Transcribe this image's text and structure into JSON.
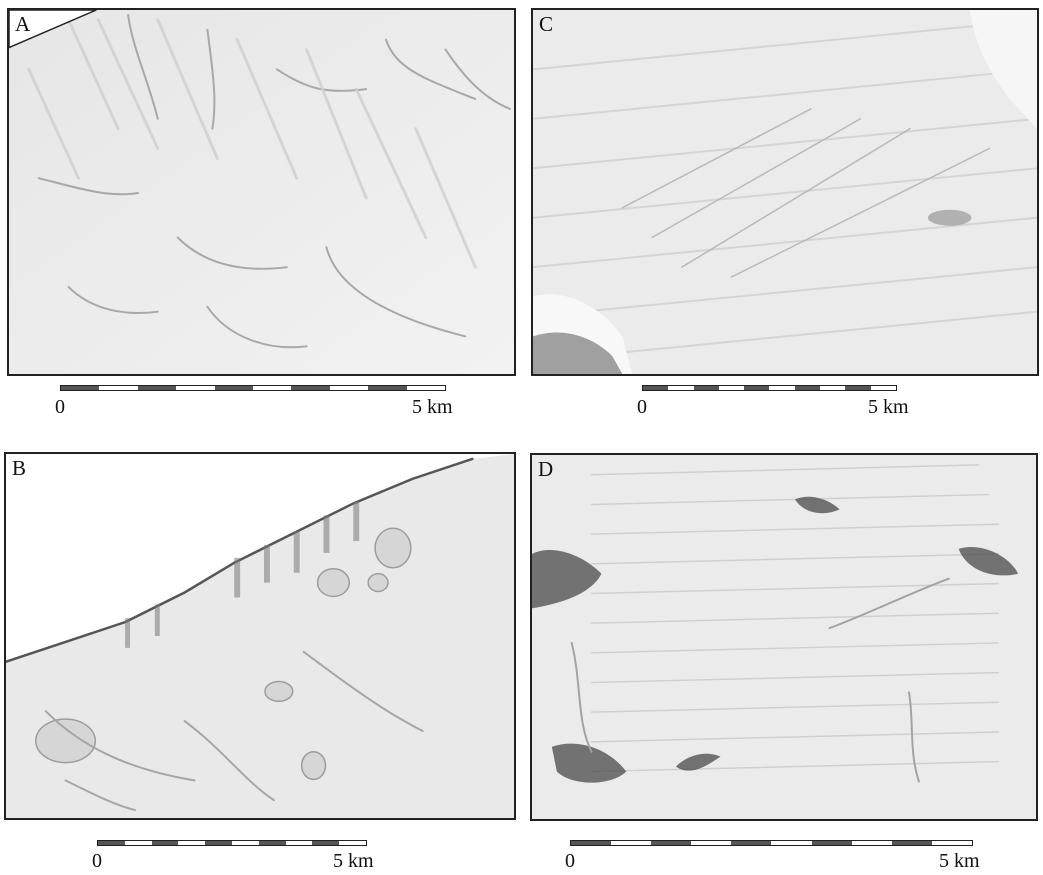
{
  "panels": [
    {
      "id": "A",
      "label": "A",
      "scale": {
        "zero": "0",
        "end": "5 km"
      }
    },
    {
      "id": "B",
      "label": "B",
      "scale": {
        "zero": "0",
        "end": "5 km"
      }
    },
    {
      "id": "C",
      "label": "C",
      "scale": {
        "zero": "0",
        "end": "5 km"
      }
    },
    {
      "id": "D",
      "label": "D",
      "scale": {
        "zero": "0",
        "end": "5 km"
      }
    }
  ],
  "description_colors": {
    "surface": "#ececec",
    "shadow": "#9a9a9a",
    "highlight": "#fafafa",
    "outcrop": "#3a3a3a",
    "scale_dark": "#555555"
  }
}
